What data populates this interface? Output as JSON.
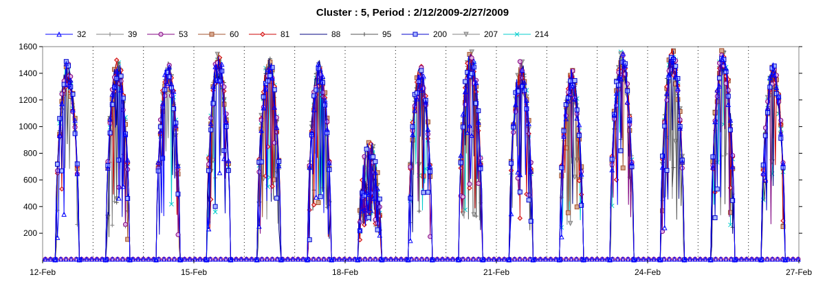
{
  "chart_data": {
    "type": "line",
    "title": "Cluster : 5, Period : 2/12/2009-2/27/2009",
    "xlabel": "",
    "ylabel": "",
    "x_range": [
      "2009-02-12",
      "2009-02-27"
    ],
    "x_tick_labels": [
      "12-Feb",
      "15-Feb",
      "18-Feb",
      "21-Feb",
      "24-Feb",
      "27-Feb"
    ],
    "y_tick_labels": [
      "200",
      "400",
      "600",
      "800",
      "1000",
      "1200",
      "1400",
      "1600"
    ],
    "ylim": [
      0,
      1600
    ],
    "grid": "vertical dotted lines at each day",
    "legend_position": "top",
    "days": [
      "2009-02-12",
      "2009-02-13",
      "2009-02-14",
      "2009-02-15",
      "2009-02-16",
      "2009-02-17",
      "2009-02-18",
      "2009-02-19",
      "2009-02-20",
      "2009-02-21",
      "2009-02-22",
      "2009-02-23",
      "2009-02-24",
      "2009-02-25",
      "2009-02-26"
    ],
    "daily_peak_values": [
      1500,
      1520,
      1490,
      1560,
      1530,
      1500,
      920,
      1460,
      1580,
      1500,
      1430,
      1570,
      1590,
      1580,
      1480
    ],
    "series": [
      {
        "name": "32",
        "color": "#0000ff",
        "marker": "triangle"
      },
      {
        "name": "39",
        "color": "#808080",
        "marker": "plus"
      },
      {
        "name": "53",
        "color": "#800080",
        "marker": "circle"
      },
      {
        "name": "60",
        "color": "#a0522d",
        "marker": "square"
      },
      {
        "name": "81",
        "color": "#cc0000",
        "marker": "diamond"
      },
      {
        "name": "88",
        "color": "#000080",
        "marker": "none"
      },
      {
        "name": "95",
        "color": "#505050",
        "marker": "plus"
      },
      {
        "name": "200",
        "color": "#0000cc",
        "marker": "square"
      },
      {
        "name": "207",
        "color": "#808080",
        "marker": "triangle-down"
      },
      {
        "name": "214",
        "color": "#00cccc",
        "marker": "x"
      }
    ]
  }
}
